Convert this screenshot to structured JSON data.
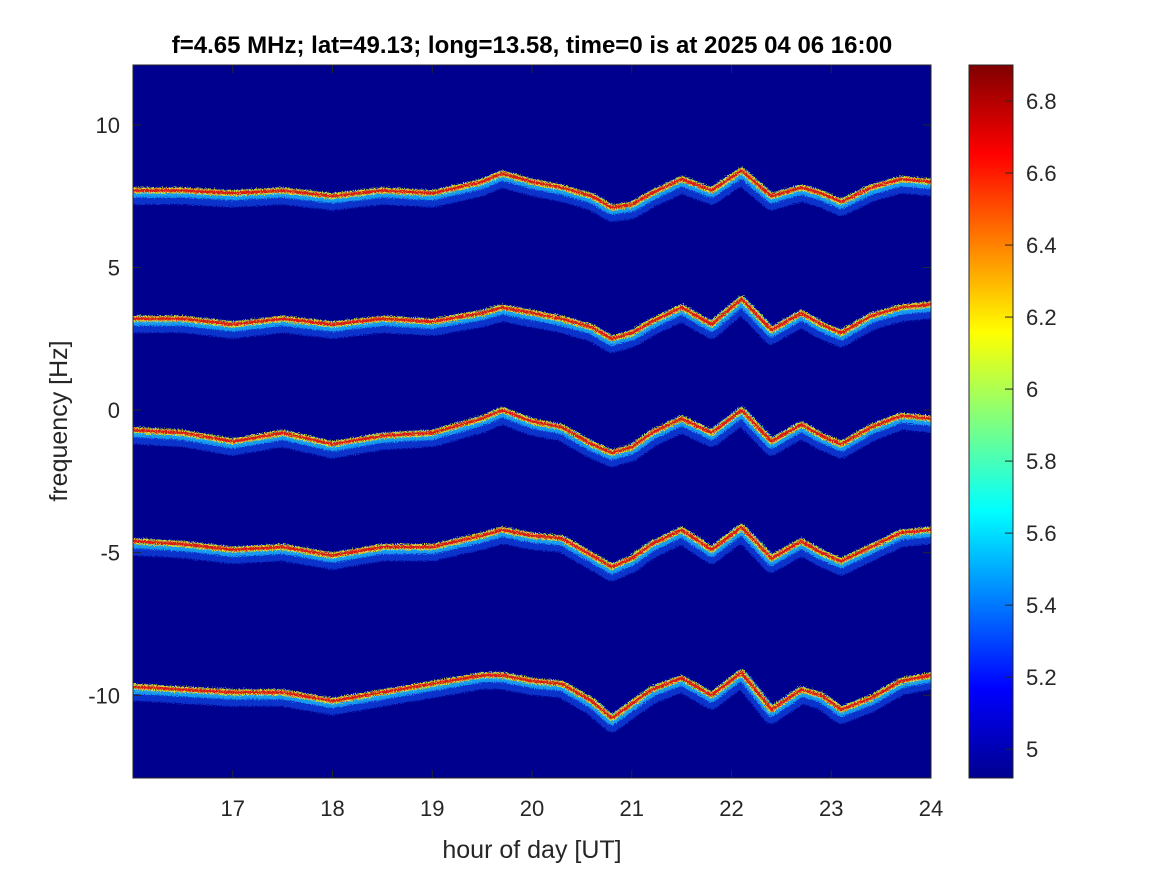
{
  "chart_data": {
    "type": "heatmap",
    "title": "f=4.65 MHz;  lat=49.13; long=13.58, time=0 is at 2025 04 06 16:00",
    "xlabel": "hour of day [UT]",
    "ylabel": "frequency [Hz]",
    "xlim": [
      16,
      24
    ],
    "ylim": [
      -12.9,
      12.1
    ],
    "x_ticks": [
      17,
      18,
      19,
      20,
      21,
      22,
      23,
      24
    ],
    "x_tick_labels": [
      "17",
      "18",
      "19",
      "20",
      "21",
      "22",
      "23",
      "24"
    ],
    "y_ticks": [
      10,
      5,
      0,
      -5,
      -10
    ],
    "y_tick_labels": [
      "10",
      "5",
      "0",
      "-5",
      "-10"
    ],
    "colorbar": {
      "colormap": "jet",
      "range": [
        4.92,
        6.9
      ],
      "ticks": [
        6.8,
        6.6,
        6.4,
        6.2,
        6,
        5.8,
        5.6,
        5.4,
        5.2,
        5
      ],
      "tick_labels": [
        "6.8",
        "6.6",
        "6.4",
        "6.2",
        "6",
        "5.8",
        "5.6",
        "5.4",
        "5.2",
        "5"
      ]
    },
    "background_color": "#00008F",
    "series": [
      {
        "x": [
          16,
          16.5,
          17,
          17.5,
          18,
          18.5,
          19,
          19.5,
          19.7,
          20,
          20.3,
          20.6,
          20.8,
          21,
          21.2,
          21.5,
          21.8,
          22.1,
          22.4,
          22.7,
          22.9,
          23.1,
          23.4,
          23.7,
          24
        ],
        "y": [
          7.7,
          7.7,
          7.6,
          7.7,
          7.5,
          7.7,
          7.6,
          8.0,
          8.3,
          8.0,
          7.8,
          7.5,
          7.1,
          7.2,
          7.6,
          8.1,
          7.7,
          8.4,
          7.5,
          7.8,
          7.6,
          7.3,
          7.8,
          8.1,
          8.0
        ]
      },
      {
        "x": [
          16,
          16.5,
          17,
          17.5,
          18,
          18.5,
          19,
          19.5,
          19.7,
          20,
          20.3,
          20.6,
          20.8,
          21,
          21.2,
          21.5,
          21.8,
          22.1,
          22.4,
          22.7,
          22.9,
          23.1,
          23.4,
          23.7,
          24
        ],
        "y": [
          3.2,
          3.2,
          3.0,
          3.2,
          3.0,
          3.2,
          3.1,
          3.4,
          3.6,
          3.4,
          3.2,
          2.9,
          2.5,
          2.7,
          3.1,
          3.6,
          3.0,
          3.9,
          2.8,
          3.4,
          3.0,
          2.7,
          3.3,
          3.6,
          3.7
        ]
      },
      {
        "x": [
          16,
          16.5,
          17,
          17.5,
          18,
          18.5,
          19,
          19.5,
          19.7,
          20,
          20.3,
          20.6,
          20.8,
          21,
          21.2,
          21.5,
          21.8,
          22.1,
          22.4,
          22.7,
          22.9,
          23.1,
          23.4,
          23.7,
          24
        ],
        "y": [
          -0.7,
          -0.8,
          -1.1,
          -0.8,
          -1.2,
          -0.9,
          -0.8,
          -0.3,
          0.0,
          -0.4,
          -0.6,
          -1.2,
          -1.5,
          -1.3,
          -0.8,
          -0.3,
          -0.8,
          0.0,
          -1.1,
          -0.5,
          -0.9,
          -1.2,
          -0.6,
          -0.2,
          -0.3
        ]
      },
      {
        "x": [
          16,
          16.5,
          17,
          17.5,
          18,
          18.5,
          19,
          19.5,
          19.7,
          20,
          20.3,
          20.6,
          20.8,
          21,
          21.2,
          21.5,
          21.8,
          22.1,
          22.4,
          22.7,
          22.9,
          23.1,
          23.4,
          23.7,
          24
        ],
        "y": [
          -4.6,
          -4.7,
          -4.9,
          -4.8,
          -5.1,
          -4.8,
          -4.8,
          -4.4,
          -4.2,
          -4.4,
          -4.5,
          -5.1,
          -5.5,
          -5.2,
          -4.7,
          -4.2,
          -4.9,
          -4.1,
          -5.2,
          -4.6,
          -5.0,
          -5.3,
          -4.8,
          -4.3,
          -4.2
        ]
      },
      {
        "x": [
          16,
          16.5,
          17,
          17.5,
          18,
          18.5,
          19,
          19.5,
          19.7,
          20,
          20.3,
          20.6,
          20.8,
          21,
          21.2,
          21.5,
          21.8,
          22.1,
          22.4,
          22.7,
          22.9,
          23.1,
          23.4,
          23.7,
          24
        ],
        "y": [
          -9.7,
          -9.8,
          -9.9,
          -9.9,
          -10.2,
          -9.9,
          -9.6,
          -9.3,
          -9.3,
          -9.5,
          -9.6,
          -10.2,
          -10.8,
          -10.3,
          -9.8,
          -9.4,
          -10.0,
          -9.2,
          -10.5,
          -9.8,
          -10.0,
          -10.5,
          -10.1,
          -9.5,
          -9.3
        ]
      }
    ]
  }
}
